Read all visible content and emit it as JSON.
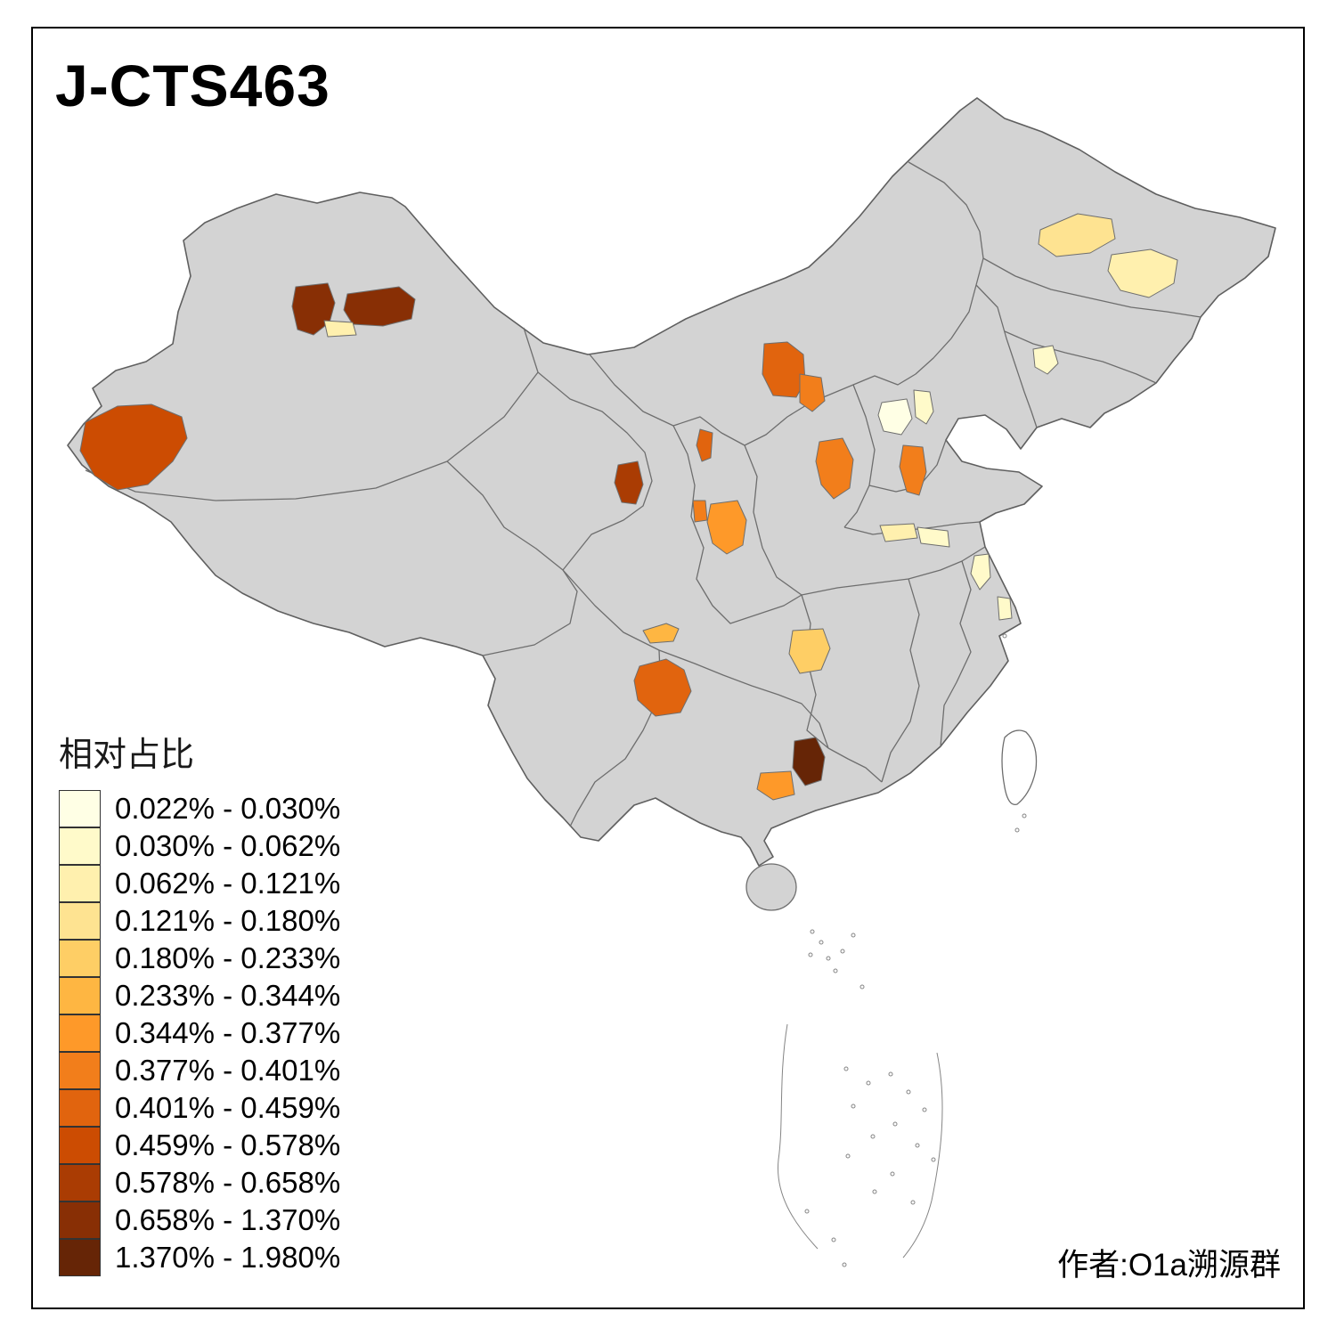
{
  "title": "J-CTS463",
  "credit": "作者:O1a溯源群",
  "legend": {
    "title": "相对占比",
    "classes": [
      {
        "range": "0.022% - 0.030%",
        "color": "#FFFFE5"
      },
      {
        "range": "0.030% - 0.062%",
        "color": "#FFFACA"
      },
      {
        "range": "0.062% - 0.121%",
        "color": "#FFF0AE"
      },
      {
        "range": "0.121% - 0.180%",
        "color": "#FEE391"
      },
      {
        "range": "0.180% - 0.233%",
        "color": "#FECE65"
      },
      {
        "range": "0.233% - 0.344%",
        "color": "#FEB642"
      },
      {
        "range": "0.344% - 0.377%",
        "color": "#FE9929"
      },
      {
        "range": "0.377% - 0.401%",
        "color": "#F27E1B"
      },
      {
        "range": "0.401% - 0.459%",
        "color": "#E1640E"
      },
      {
        "range": "0.459% - 0.578%",
        "color": "#CC4C02"
      },
      {
        "range": "0.578% - 0.658%",
        "color": "#AA3C03"
      },
      {
        "range": "0.658% - 1.370%",
        "color": "#882F05"
      },
      {
        "range": "1.370% - 1.980%",
        "color": "#662506"
      }
    ]
  },
  "map": {
    "base_fill": "#D3D3D3",
    "boundary_color": "#6E6E6E",
    "regions": [
      {
        "id": "north-xinjiang-west",
        "legend_class": 12,
        "color": "#882F05"
      },
      {
        "id": "north-xinjiang-east",
        "legend_class": 12,
        "color": "#882F05"
      },
      {
        "id": "north-xinjiang-small",
        "legend_class": 3,
        "color": "#FFF0AE"
      },
      {
        "id": "west-xinjiang",
        "legend_class": 10,
        "color": "#CC4C02"
      },
      {
        "id": "inner-mongolia-west",
        "legend_class": 9,
        "color": "#E1640E"
      },
      {
        "id": "inner-mongolia-east",
        "legend_class": 8,
        "color": "#F27E1B"
      },
      {
        "id": "ningxia",
        "legend_class": 9,
        "color": "#E1640E"
      },
      {
        "id": "qinghai-east",
        "legend_class": 11,
        "color": "#AA3C03"
      },
      {
        "id": "gansu-south",
        "legend_class": 8,
        "color": "#F27E1B"
      },
      {
        "id": "shaanxi-central",
        "legend_class": 7,
        "color": "#FE9929"
      },
      {
        "id": "shanxi-central",
        "legend_class": 8,
        "color": "#F27E1B"
      },
      {
        "id": "beijing-west",
        "legend_class": 1,
        "color": "#FFFFE5"
      },
      {
        "id": "beijing-east",
        "legend_class": 2,
        "color": "#FFFACA"
      },
      {
        "id": "hebei-south",
        "legend_class": 8,
        "color": "#F27E1B"
      },
      {
        "id": "heilongjiang-west",
        "legend_class": 4,
        "color": "#FEE391"
      },
      {
        "id": "heilongjiang-central",
        "legend_class": 3,
        "color": "#FFF0AE"
      },
      {
        "id": "liaoning-north",
        "legend_class": 2,
        "color": "#FFFACA"
      },
      {
        "id": "jiangsu-northwest",
        "legend_class": 3,
        "color": "#FFF0AE"
      },
      {
        "id": "jiangsu-northeast",
        "legend_class": 2,
        "color": "#FFFACA"
      },
      {
        "id": "anhui-east",
        "legend_class": 2,
        "color": "#FFFACA"
      },
      {
        "id": "shanghai",
        "legend_class": 2,
        "color": "#FFFACA"
      },
      {
        "id": "sichuan-north-small",
        "legend_class": 6,
        "color": "#FEB642"
      },
      {
        "id": "sichuan-south",
        "legend_class": 9,
        "color": "#E1640E"
      },
      {
        "id": "chongqing-east",
        "legend_class": 5,
        "color": "#FECE65"
      },
      {
        "id": "guizhou-south",
        "legend_class": 13,
        "color": "#662506"
      },
      {
        "id": "guangxi-central",
        "legend_class": 7,
        "color": "#FE9929"
      }
    ]
  }
}
